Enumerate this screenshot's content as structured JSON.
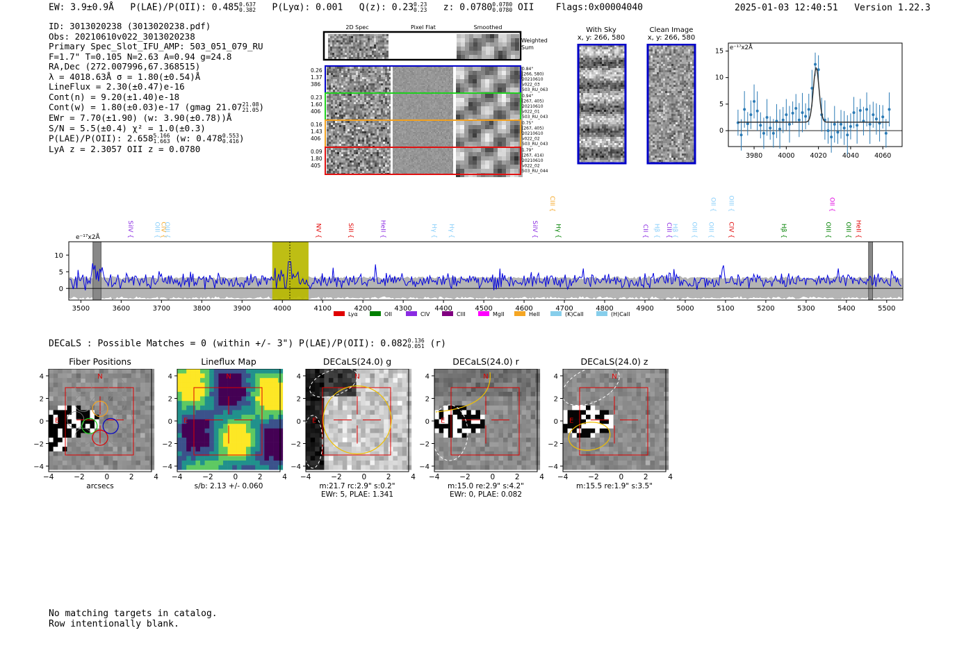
{
  "header": {
    "ew": "EW: 3.9±0.9Å",
    "plae_label": "P(LAE)/P(OII): 0.485",
    "plae_hi": "0.637",
    "plae_lo": "0.382",
    "plya": "P(Lyα): 0.001",
    "qz_label": "Q(z): 0.23",
    "qz_hi": "0.23",
    "qz_lo": "0.23",
    "z_label": "z: 0.0780",
    "z_hi": "0.0780",
    "z_lo": "0.0780",
    "z_line": "OII",
    "flags": "Flags:0x00004040",
    "timestamp": "2025-01-03 12:40:51",
    "version": "Version 1.22.3"
  },
  "info": {
    "l1": "ID: 3013020238 (3013020238.pdf)",
    "l2": "Obs: 20210610v022_3013020238",
    "l3": "Primary Spec_Slot_IFU_AMP: 503_051_079_RU",
    "l4": "F=1.7\"  T=0.105  N=2.63  A=0.94  g=24.8",
    "l5": "RA,Dec (272.007996,67.368515)",
    "l6": "λ = 4018.63Å  σ = 1.80(±0.54)Å",
    "l7": "LineFlux = 2.30(±0.47)e-16",
    "l8": "Cont(n) = 9.20(±1.40)e-18",
    "l9": "Cont(w) = 1.80(±0.03)e-17 (gmag 21.07",
    "l9_hi": "21.08",
    "l9_lo": "21.05",
    "l9_end": ")",
    "l10": "EWr = 7.70(±1.90) (w: 3.90(±0.78))Å",
    "l11": "S/N = 5.5(±0.4)  χ² = 1.0(±0.3)",
    "l12a": "P(LAE)/P(OII): 2.658",
    "l12_hi": "5.166",
    "l12_lo": "1.663",
    "l12b": "(w: 0.478",
    "l12b_hi": "0.553",
    "l12b_lo": "0.416",
    "l12_end": ")",
    "l13": "LyA z = 2.3057   OII z = 0.0780"
  },
  "cutouts": {
    "col_2d": "2D Spec",
    "col_flat": "Pixel Flat",
    "col_smooth": "Smoothed",
    "weighted_sum": "Weighted Sum",
    "rows": [
      {
        "left": [
          "0.26",
          "1.37",
          "386"
        ],
        "right": [
          "0.84\"",
          "(266, 580)",
          "20210610",
          "v022_03",
          "503_RU_063"
        ],
        "color": "#0000c8"
      },
      {
        "left": [
          "0.23",
          "1.60",
          "406"
        ],
        "right": [
          "0.94\"",
          "(267, 405)",
          "20210610",
          "v022_01",
          "503_RU_043"
        ],
        "color": "#1fd01f"
      },
      {
        "left": [
          "0.16",
          "1.43",
          "406"
        ],
        "right": [
          "0.75\"",
          "(267, 405)",
          "20210610",
          "v022_02",
          "503_RU_043"
        ],
        "color": "#f0a020"
      },
      {
        "left": [
          "0.09",
          "1.80",
          "405"
        ],
        "right": [
          "1.79\"",
          "(267, 414)",
          "20210610",
          "v022_02",
          "503_RU_044"
        ],
        "color": "#e01010"
      }
    ],
    "with_sky": "With Sky",
    "with_sky_xy": "x, y: 266, 580",
    "clean": "Clean Image",
    "clean_xy": "x, y: 266, 580"
  },
  "line_fit_chart": {
    "type": "scatter",
    "unit": "e⁻¹⁷x2Å",
    "xlim": [
      3964,
      4072
    ],
    "ylim": [
      -3,
      16.5
    ],
    "xticks": [
      3980,
      4000,
      4020,
      4040,
      4060
    ],
    "yticks": [
      0,
      5,
      10,
      15
    ],
    "fit": {
      "center": 4018.6,
      "sigma": 1.8,
      "amplitude": 10.2,
      "baseline": 1.6
    },
    "points": [
      [
        3970,
        1.5
      ],
      [
        3972,
        -0.8
      ],
      [
        3974,
        4.0
      ],
      [
        3976,
        1.3
      ],
      [
        3978,
        3.0
      ],
      [
        3980,
        5.5
      ],
      [
        3982,
        3.7
      ],
      [
        3984,
        1.0
      ],
      [
        3986,
        -0.5
      ],
      [
        3988,
        2.5
      ],
      [
        3990,
        0.5
      ],
      [
        3992,
        -0.5
      ],
      [
        3994,
        1.8
      ],
      [
        3996,
        0.3
      ],
      [
        3998,
        2.0
      ],
      [
        4000,
        3.0
      ],
      [
        4002,
        1.2
      ],
      [
        4004,
        3.3
      ],
      [
        4006,
        4.2
      ],
      [
        4008,
        2.0
      ],
      [
        4010,
        3.4
      ],
      [
        4012,
        2.7
      ],
      [
        4014,
        4.0
      ],
      [
        4016,
        8.0
      ],
      [
        4018,
        12.5
      ],
      [
        4020,
        11.5
      ],
      [
        4022,
        3.0
      ],
      [
        4024,
        2.0
      ],
      [
        4026,
        0.0
      ],
      [
        4028,
        -1.2
      ],
      [
        4030,
        1.2
      ],
      [
        4032,
        -0.3
      ],
      [
        4034,
        1.2
      ],
      [
        4036,
        0.5
      ],
      [
        4038,
        -0.8
      ],
      [
        4040,
        0.8
      ],
      [
        4042,
        3.4
      ],
      [
        4044,
        1.0
      ],
      [
        4046,
        3.8
      ],
      [
        4048,
        1.8
      ],
      [
        4050,
        4.0
      ],
      [
        4052,
        1.2
      ],
      [
        4054,
        3.0
      ],
      [
        4056,
        2.2
      ],
      [
        4058,
        1.4
      ],
      [
        4060,
        2.6
      ],
      [
        4062,
        -0.5
      ],
      [
        4064,
        4.0
      ]
    ]
  },
  "spectrum_chart": {
    "type": "line",
    "unit": "e⁻¹⁷x2Å",
    "xlim": [
      3470,
      5540
    ],
    "ylim": [
      -3.5,
      14
    ],
    "xticks": [
      3500,
      3600,
      3700,
      3800,
      3900,
      4000,
      4100,
      4200,
      4300,
      4400,
      4500,
      4600,
      4700,
      4800,
      4900,
      5000,
      5100,
      5200,
      5300,
      5400,
      5500
    ],
    "yticks": [
      0,
      5,
      10
    ],
    "highlight": [
      3975,
      4065
    ],
    "line_marker": 4018.6,
    "masks": [
      [
        3530,
        3550
      ],
      [
        5455,
        5465
      ]
    ],
    "series_color": "#0000e0",
    "noise_color": "#b4b4b4",
    "line_labels": [
      {
        "name": "SiIV",
        "x": 3618,
        "tier": 1,
        "color": "#8a2be2"
      },
      {
        "name": "OIII",
        "x": 3685,
        "tier": 1,
        "color": "#87cefa"
      },
      {
        "name": "CIV",
        "x": 3700,
        "tier": 1,
        "color": "#f5a623"
      },
      {
        "name": "OIII",
        "x": 3710,
        "tier": 1,
        "color": "#87cefa"
      },
      {
        "name": "NV",
        "x": 4085,
        "tier": 1,
        "color": "#e00000"
      },
      {
        "name": "SiII",
        "x": 4165,
        "tier": 1,
        "color": "#e00000"
      },
      {
        "name": "HeII",
        "x": 4245,
        "tier": 1,
        "color": "#8a2be2"
      },
      {
        "name": "Hγ",
        "x": 4372,
        "tier": 1,
        "color": "#87cefa"
      },
      {
        "name": "Hγ",
        "x": 4415,
        "tier": 1,
        "color": "#87cefa"
      },
      {
        "name": "SiIV",
        "x": 4622,
        "tier": 1,
        "color": "#8a2be2"
      },
      {
        "name": "CIII",
        "x": 4665,
        "tier": 3,
        "color": "#f5a623"
      },
      {
        "name": "Hγ",
        "x": 4680,
        "tier": 1,
        "color": "#008000"
      },
      {
        "name": "CII",
        "x": 4897,
        "tier": 1,
        "color": "#8a2be2"
      },
      {
        "name": "Hβ",
        "x": 4925,
        "tier": 1,
        "color": "#87cefa"
      },
      {
        "name": "CIII",
        "x": 4955,
        "tier": 1,
        "color": "#8a2be2"
      },
      {
        "name": "Hβ",
        "x": 4970,
        "tier": 1,
        "color": "#87cefa"
      },
      {
        "name": "OIII",
        "x": 5018,
        "tier": 1,
        "color": "#87cefa"
      },
      {
        "name": "OIII",
        "x": 5060,
        "tier": 1,
        "color": "#87cefa"
      },
      {
        "name": "OII",
        "x": 5065,
        "tier": 3,
        "color": "#87cefa"
      },
      {
        "name": "OIII",
        "x": 5110,
        "tier": 3,
        "color": "#87cefa"
      },
      {
        "name": "CIV",
        "x": 5110,
        "tier": 1,
        "color": "#e00000"
      },
      {
        "name": "Hβ",
        "x": 5240,
        "tier": 1,
        "color": "#008000"
      },
      {
        "name": "OIII",
        "x": 5350,
        "tier": 1,
        "color": "#008000"
      },
      {
        "name": "OII",
        "x": 5360,
        "tier": 3,
        "color": "#e000e0"
      },
      {
        "name": "OIII",
        "x": 5400,
        "tier": 1,
        "color": "#008000"
      },
      {
        "name": "HeII",
        "x": 5425,
        "tier": 1,
        "color": "#e00000"
      }
    ],
    "legend": [
      {
        "name": "Lyα",
        "color": "#e00000"
      },
      {
        "name": "OII",
        "color": "#008000"
      },
      {
        "name": "CIV",
        "color": "#8a2be2"
      },
      {
        "name": "CIII",
        "color": "#800080"
      },
      {
        "name": "MgII",
        "color": "#ff00ff"
      },
      {
        "name": "HeII",
        "color": "#f5a623"
      },
      {
        "name": "(K)CaII",
        "color": "#87ceeb"
      },
      {
        "name": "(H)CaII",
        "color": "#87ceeb"
      }
    ]
  },
  "decals": {
    "line": "DECaLS : Possible Matches = 0 (within +/- 3\")  P(LAE)/P(OII): 0.082",
    "hi": "0.136",
    "lo": "0.051",
    "end": "(r)"
  },
  "panels": [
    {
      "title": "Fiber Positions",
      "xlabel": "arcsecs",
      "sub1": "",
      "sub2": ""
    },
    {
      "title": "Lineflux Map",
      "xlabel": "",
      "sub1": "s/b: 2.13 +/- 0.060",
      "sub2": ""
    },
    {
      "title": "DECaLS(24.0) g",
      "xlabel": "",
      "sub1": "m:21.7 rc:2.9\"  s:0.2\"",
      "sub2": "EWr: 5, PLAE: 1.341"
    },
    {
      "title": "DECaLS(24.0) r",
      "xlabel": "",
      "sub1": "m:15.0  re:2.9\"  s:4.2\"",
      "sub2": "EWr: 0, PLAE: 0.082"
    },
    {
      "title": "DECaLS(24.0) z",
      "xlabel": "",
      "sub1": "m:15.5  re:1.9\"  s:3.5\"",
      "sub2": ""
    }
  ],
  "panel_ticks": [
    "4",
    "2",
    "0",
    "−2",
    "−4"
  ],
  "panel_xticks": [
    "−4",
    "−2",
    "0",
    "2",
    "4"
  ],
  "compass": {
    "n": "N",
    "e": "E"
  },
  "footer": {
    "l1": "No matching targets in catalog.",
    "l2": "Row intentionally blank."
  }
}
